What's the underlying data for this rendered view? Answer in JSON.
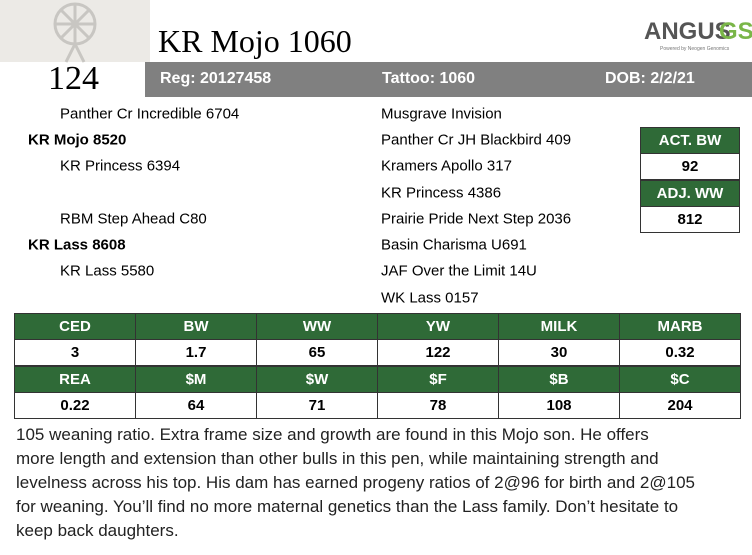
{
  "logo": {
    "brand": "ANGUS",
    "suffix": "GS",
    "tagline": "Powered by Neogen Genomics"
  },
  "lot": "124",
  "name": "KR Mojo 1060",
  "header": {
    "reg": "Reg: 20127458",
    "tattoo": "Tattoo: 1060",
    "dob": "DOB: 2/2/21"
  },
  "pedigree": {
    "left": [
      "Panther Cr Incredible 6704",
      "KR Mojo 8520",
      "KR Princess 6394",
      null,
      "RBM Step Ahead C80",
      "KR Lass 8608",
      "KR Lass 5580",
      null
    ],
    "right": [
      "Musgrave Invision",
      "Panther Cr JH Blackbird 409",
      "Kramers Apollo 317",
      "KR Princess 4386",
      "Prairie Pride Next Step 2036",
      "Basin Charisma U691",
      "JAF Over the Limit 14U",
      "WK Lass 0157"
    ]
  },
  "measures": [
    {
      "label": "ACT. BW",
      "value": 92
    },
    {
      "label": "ADJ. WW",
      "value": 812
    }
  ],
  "epd": [
    {
      "headers": [
        "CED",
        "BW",
        "WW",
        "YW",
        "MILK",
        "MARB"
      ],
      "values": [
        3,
        1.7,
        65,
        122,
        30,
        0.32
      ]
    },
    {
      "headers": [
        "REA",
        "$M",
        "$W",
        "$F",
        "$B",
        "$C"
      ],
      "values": [
        0.22,
        64,
        71,
        78,
        108,
        204
      ]
    }
  ],
  "description": [
    "105 weaning ratio. Extra frame size and growth are found in this Mojo son. He offers",
    "more length and extension than other bulls in this pen, while maintaining strength and",
    "levelness across his top. His dam has earned progeny ratios of 2@96 for birth and 2@105",
    "for weaning. You’ll find no more maternal genetics than the Lass family.  Don’t hesitate to",
    "keep back daughters."
  ]
}
